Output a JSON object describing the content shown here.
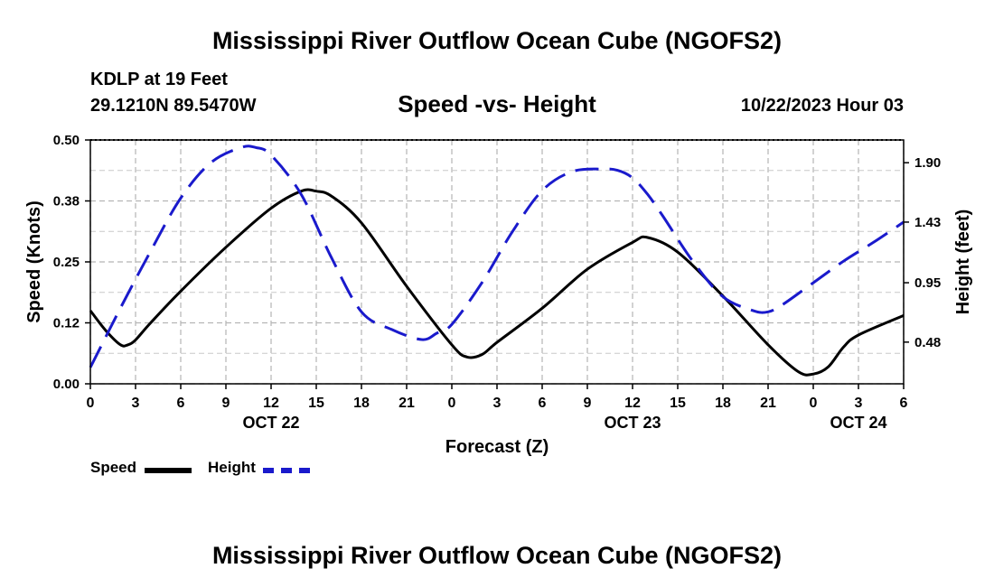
{
  "header": {
    "title": "Mississippi River Outflow Ocean Cube (NGOFS2)",
    "station": "KDLP at 19 Feet",
    "latlon": "29.1210N  89.5470W",
    "subtitle": "Speed -vs- Height",
    "datetime": "10/22/2023 Hour 03",
    "footer_title": "Mississippi River Outflow Ocean Cube (NGOFS2)"
  },
  "legend": {
    "speed_label": "Speed",
    "height_label": "Height"
  },
  "colors": {
    "speed": "#000000",
    "height": "#1a1acc"
  },
  "chart_data": {
    "type": "line",
    "title": "Speed -vs- Height",
    "xlabel": "Forecast (Z)",
    "ylabel": "Speed (Knots)",
    "y2label": "Height (feet)",
    "xlim": [
      0,
      54
    ],
    "ylim": [
      0,
      0.5
    ],
    "y2lim": [
      0.15,
      2.08
    ],
    "x_ticks": [
      0,
      3,
      6,
      9,
      12,
      15,
      18,
      21,
      24,
      27,
      30,
      33,
      36,
      39,
      42,
      45,
      48,
      51,
      54
    ],
    "x_tick_labels": [
      "0",
      "3",
      "6",
      "9",
      "12",
      "15",
      "18",
      "21",
      "0",
      "3",
      "6",
      "9",
      "12",
      "15",
      "18",
      "21",
      "0",
      "3",
      "6"
    ],
    "y_ticks": [
      0.0,
      0.125,
      0.25,
      0.375,
      0.5
    ],
    "y_tick_labels": [
      "0.00",
      "0.12",
      "0.25",
      "0.38",
      "0.50"
    ],
    "y2_ticks": [
      0.48,
      0.95,
      1.43,
      1.9
    ],
    "y2_tick_labels": [
      "0.48",
      "0.95",
      "1.43",
      "1.90"
    ],
    "date_labels": [
      {
        "x": 12,
        "label": "OCT 22"
      },
      {
        "x": 36,
        "label": "OCT 23"
      },
      {
        "x": 51,
        "label": "OCT 24"
      }
    ],
    "grid": true,
    "series": [
      {
        "name": "Speed",
        "axis": "left",
        "style": "solid",
        "x": [
          0,
          1,
          2,
          2.5,
          3,
          4,
          6,
          9,
          12,
          14,
          15,
          16,
          18,
          21,
          24,
          25,
          26,
          27,
          30,
          33,
          36,
          37,
          39,
          42,
          45,
          47,
          48,
          49,
          50,
          51,
          54
        ],
        "values": [
          0.15,
          0.11,
          0.08,
          0.08,
          0.09,
          0.125,
          0.19,
          0.28,
          0.36,
          0.395,
          0.395,
          0.385,
          0.33,
          0.2,
          0.08,
          0.055,
          0.06,
          0.085,
          0.155,
          0.235,
          0.29,
          0.3,
          0.27,
          0.18,
          0.08,
          0.025,
          0.02,
          0.035,
          0.075,
          0.1,
          0.14
        ]
      },
      {
        "name": "Height",
        "axis": "right",
        "style": "dashed",
        "x": [
          0,
          2,
          4,
          6,
          8,
          10,
          11,
          12,
          14,
          16,
          18,
          20,
          22,
          23,
          24,
          26,
          28,
          30,
          32,
          34,
          35,
          36,
          37,
          38,
          40,
          42,
          44,
          45,
          46,
          48,
          50,
          52,
          54
        ],
        "values": [
          0.28,
          0.75,
          1.2,
          1.62,
          1.9,
          2.02,
          2.02,
          1.96,
          1.65,
          1.15,
          0.72,
          0.58,
          0.5,
          0.55,
          0.62,
          0.95,
          1.35,
          1.68,
          1.83,
          1.85,
          1.84,
          1.78,
          1.65,
          1.48,
          1.12,
          0.84,
          0.73,
          0.72,
          0.78,
          0.95,
          1.12,
          1.27,
          1.43
        ]
      }
    ]
  }
}
